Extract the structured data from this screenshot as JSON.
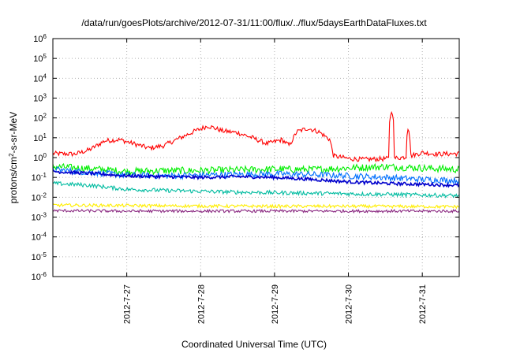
{
  "chart_data": {
    "type": "line",
    "title": "/data/run/goesPlots/archive/2012-07-31/11:00/flux/../flux/5daysEarthDataFluxes.txt",
    "xlabel": "Coordinated Universal Time (UTC)",
    "ylabel_main": "protons/cm",
    "ylabel_sup": "2",
    "ylabel_rest": "-s-sr-MeV",
    "y_scale": "log",
    "ylim_exponents": [
      -6,
      6
    ],
    "y_ticks": [
      {
        "base": "10",
        "exp": "-6"
      },
      {
        "base": "10",
        "exp": "-5"
      },
      {
        "base": "10",
        "exp": "-4"
      },
      {
        "base": "10",
        "exp": "-3"
      },
      {
        "base": "10",
        "exp": "-2"
      },
      {
        "base": "10",
        "exp": "-1"
      },
      {
        "base": "10",
        "exp": "0"
      },
      {
        "base": "10",
        "exp": "1"
      },
      {
        "base": "10",
        "exp": "2"
      },
      {
        "base": "10",
        "exp": "3"
      },
      {
        "base": "10",
        "exp": "4"
      },
      {
        "base": "10",
        "exp": "5"
      },
      {
        "base": "10",
        "exp": "6"
      }
    ],
    "x_unit": "days",
    "xlim_days": [
      0,
      5.5
    ],
    "x_ticks": [
      {
        "label": "2012-7-27",
        "day": 1
      },
      {
        "label": "2012-7-28",
        "day": 2
      },
      {
        "label": "2012-7-29",
        "day": 3
      },
      {
        "label": "2012-7-30",
        "day": 4
      },
      {
        "label": "2012-7-31",
        "day": 5
      }
    ],
    "grid": true,
    "series": [
      {
        "color": "#ff0000",
        "noise": 0.12,
        "points": [
          [
            0,
            1.6
          ],
          [
            0.3,
            1.5
          ],
          [
            0.5,
            2.5
          ],
          [
            0.7,
            7
          ],
          [
            0.9,
            8
          ],
          [
            1.1,
            5
          ],
          [
            1.3,
            3
          ],
          [
            1.5,
            4
          ],
          [
            1.7,
            9
          ],
          [
            1.9,
            20
          ],
          [
            2.1,
            40
          ],
          [
            2.3,
            22
          ],
          [
            2.5,
            18
          ],
          [
            2.7,
            10
          ],
          [
            2.9,
            5
          ],
          [
            3.1,
            8
          ],
          [
            3.2,
            4
          ],
          [
            3.3,
            20
          ],
          [
            3.45,
            30
          ],
          [
            3.6,
            20
          ],
          [
            3.75,
            8
          ],
          [
            3.8,
            1.2
          ],
          [
            4.0,
            0.9
          ],
          [
            4.2,
            0.8
          ],
          [
            4.4,
            0.85
          ],
          [
            4.6,
            0.9
          ],
          [
            4.8,
            1.1
          ],
          [
            5.0,
            1.8
          ],
          [
            5.2,
            1.5
          ],
          [
            5.5,
            1.6
          ]
        ]
      },
      {
        "color": "#00ee00",
        "noise": 0.18,
        "points": [
          [
            0,
            0.35
          ],
          [
            0.5,
            0.28
          ],
          [
            1.0,
            0.2
          ],
          [
            1.5,
            0.22
          ],
          [
            2.0,
            0.22
          ],
          [
            2.5,
            0.24
          ],
          [
            3.0,
            0.26
          ],
          [
            3.5,
            0.25
          ],
          [
            4.0,
            0.3
          ],
          [
            4.5,
            0.35
          ],
          [
            5.0,
            0.3
          ],
          [
            5.5,
            0.25
          ]
        ]
      },
      {
        "color": "#0070ff",
        "noise": 0.16,
        "points": [
          [
            0,
            0.25
          ],
          [
            0.5,
            0.18
          ],
          [
            1.0,
            0.13
          ],
          [
            1.5,
            0.12
          ],
          [
            2.0,
            0.13
          ],
          [
            2.5,
            0.14
          ],
          [
            3.0,
            0.15
          ],
          [
            3.5,
            0.14
          ],
          [
            4.0,
            0.12
          ],
          [
            4.5,
            0.1
          ],
          [
            5.0,
            0.08
          ],
          [
            5.5,
            0.07
          ]
        ]
      },
      {
        "color": "#0000cc",
        "noise": 0.08,
        "points": [
          [
            0,
            0.2
          ],
          [
            0.5,
            0.16
          ],
          [
            1.0,
            0.12
          ],
          [
            1.5,
            0.11
          ],
          [
            2.0,
            0.1
          ],
          [
            2.5,
            0.11
          ],
          [
            3.0,
            0.1
          ],
          [
            3.5,
            0.08
          ],
          [
            4.0,
            0.06
          ],
          [
            4.5,
            0.05
          ],
          [
            5.0,
            0.045
          ],
          [
            5.5,
            0.04
          ]
        ]
      },
      {
        "color": "#00bba0",
        "noise": 0.1,
        "points": [
          [
            0,
            0.05
          ],
          [
            0.5,
            0.04
          ],
          [
            1.0,
            0.025
          ],
          [
            1.5,
            0.022
          ],
          [
            2.0,
            0.02
          ],
          [
            2.5,
            0.018
          ],
          [
            3.0,
            0.017
          ],
          [
            3.5,
            0.016
          ],
          [
            4.0,
            0.015
          ],
          [
            4.5,
            0.014
          ],
          [
            5.0,
            0.013
          ],
          [
            5.5,
            0.012
          ]
        ]
      },
      {
        "color": "#ffee00",
        "noise": 0.08,
        "points": [
          [
            0,
            0.004
          ],
          [
            1.0,
            0.0038
          ],
          [
            2.0,
            0.0036
          ],
          [
            3.0,
            0.0035
          ],
          [
            4.0,
            0.0035
          ],
          [
            5.0,
            0.0034
          ],
          [
            5.5,
            0.0033
          ]
        ]
      },
      {
        "color": "#8b2a82",
        "noise": 0.07,
        "points": [
          [
            0,
            0.0021
          ],
          [
            1.0,
            0.002
          ],
          [
            2.0,
            0.002
          ],
          [
            3.0,
            0.002
          ],
          [
            4.0,
            0.002
          ],
          [
            5.0,
            0.002
          ],
          [
            5.5,
            0.002
          ]
        ]
      }
    ]
  }
}
